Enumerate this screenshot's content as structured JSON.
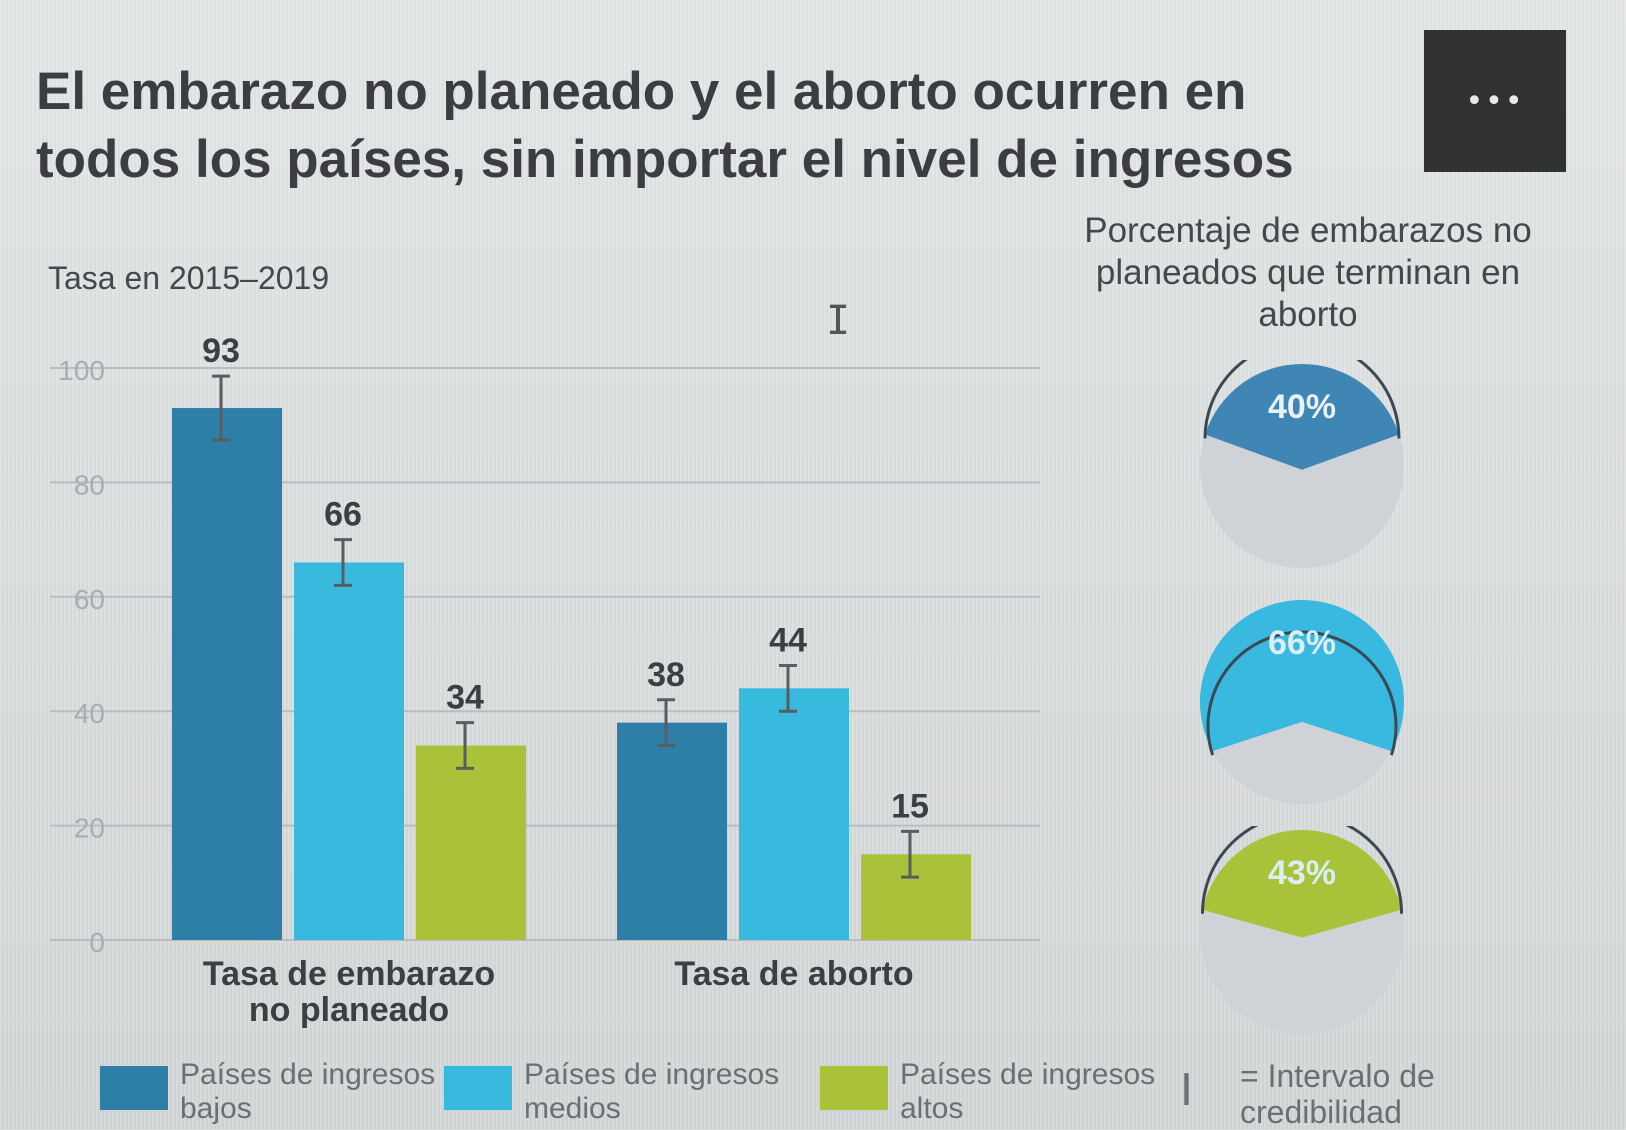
{
  "header": {
    "title": "El embarazo no planeado y el aborto ocurren en todos los países, sin importar el nivel de ingresos",
    "menu_label": "•••"
  },
  "chart_data": {
    "type": "bar",
    "subtitle": "Tasa en 2015–2019",
    "ylim": [
      0,
      100
    ],
    "yticks": [
      0,
      20,
      40,
      60,
      80,
      100
    ],
    "grid": true,
    "groups": [
      {
        "label": "Tasa de embarazo no planeado",
        "values": [
          93,
          66,
          34
        ]
      },
      {
        "label": "Tasa de aborto",
        "values": [
          38,
          44,
          15
        ]
      }
    ],
    "series": [
      {
        "name": "Países de ingresos bajos",
        "color": "#2e7fa8"
      },
      {
        "name": "Países de ingresos medios",
        "color": "#38b9de"
      },
      {
        "name": "Países de ingresos altos",
        "color": "#a9c23a"
      }
    ],
    "error_bars": true
  },
  "gauges": {
    "title": "Porcentaje de embarazos no planeados que terminan en aborto",
    "items": [
      {
        "label": "40%",
        "value": 40,
        "color": "#3f86b5"
      },
      {
        "label": "66%",
        "value": 66,
        "color": "#39b8e0"
      },
      {
        "label": "43%",
        "value": 43,
        "color": "#a8c23a"
      }
    ]
  },
  "legend": {
    "ci_glyph": "I",
    "ci_label": "= Intervalo de credibilidad"
  }
}
